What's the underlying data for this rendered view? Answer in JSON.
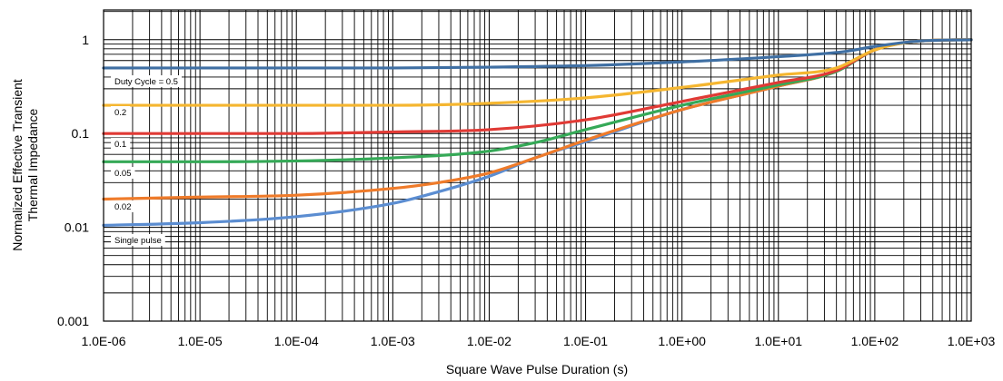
{
  "chart_data": {
    "type": "line",
    "title": "",
    "xlabel": "Square Wave Pulse Duration (s)",
    "ylabel_lines": [
      "Normalized Effective Transient",
      "Thermal Impedance"
    ],
    "xscale": "log",
    "yscale": "log",
    "xlim": [
      1e-06,
      1000
    ],
    "ylim": [
      0.001,
      2
    ],
    "grid": true,
    "x_tick_labels": [
      "1.0E-06",
      "1.0E-05",
      "1.0E-04",
      "1.0E-03",
      "1.0E-02",
      "1.0E-01",
      "1.0E+00",
      "1.0E+01",
      "1.0E+02",
      "1.0E+03"
    ],
    "y_tick_labels": [
      "0.001",
      "0.01",
      "0.1",
      "1"
    ],
    "series": [
      {
        "name": "Duty Cycle = 0.5",
        "color": "#3f6fa3",
        "x": [
          1e-06,
          1e-05,
          0.0001,
          0.001,
          0.01,
          0.1,
          1,
          10,
          50,
          100,
          300,
          1000
        ],
        "y": [
          0.5,
          0.5,
          0.5,
          0.5,
          0.51,
          0.53,
          0.58,
          0.66,
          0.75,
          0.85,
          0.97,
          1.0
        ]
      },
      {
        "name": "0.2",
        "color": "#f5b630",
        "x": [
          1e-06,
          1e-05,
          0.0001,
          0.001,
          0.01,
          0.1,
          1,
          10,
          40,
          100,
          300,
          1000
        ],
        "y": [
          0.2,
          0.2,
          0.2,
          0.2,
          0.21,
          0.24,
          0.31,
          0.42,
          0.5,
          0.78,
          0.97,
          1.0
        ]
      },
      {
        "name": "0.1",
        "color": "#e03a35",
        "x": [
          1e-06,
          1e-05,
          0.0001,
          0.001,
          0.01,
          0.1,
          1,
          10,
          40,
          100,
          300,
          1000
        ],
        "y": [
          0.1,
          0.1,
          0.1,
          0.104,
          0.11,
          0.14,
          0.22,
          0.35,
          0.47,
          0.78,
          0.97,
          1.0
        ]
      },
      {
        "name": "0.05",
        "color": "#35a957",
        "x": [
          1e-06,
          1e-05,
          0.0001,
          0.001,
          0.01,
          0.03,
          0.1,
          1,
          10,
          40,
          100,
          300,
          1000
        ],
        "y": [
          0.05,
          0.05,
          0.051,
          0.055,
          0.065,
          0.08,
          0.11,
          0.2,
          0.33,
          0.46,
          0.78,
          0.97,
          1.0
        ]
      },
      {
        "name": "0.02",
        "color": "#ef7b2a",
        "x": [
          1e-06,
          1e-05,
          0.0001,
          0.001,
          0.003,
          0.01,
          0.03,
          0.1,
          1,
          10,
          40,
          100,
          300,
          1000
        ],
        "y": [
          0.02,
          0.021,
          0.022,
          0.026,
          0.03,
          0.038,
          0.055,
          0.085,
          0.18,
          0.32,
          0.46,
          0.78,
          0.97,
          1.0
        ]
      },
      {
        "name": "Single pulse",
        "color": "#5b8dd1",
        "x": [
          1e-06,
          1e-05,
          0.0001,
          0.001,
          0.003,
          0.01,
          0.03,
          0.1,
          1,
          10,
          40,
          100,
          300,
          1000
        ],
        "y": [
          0.0105,
          0.0112,
          0.013,
          0.018,
          0.024,
          0.035,
          0.055,
          0.082,
          0.18,
          0.32,
          0.46,
          0.78,
          0.97,
          1.0
        ]
      }
    ]
  }
}
